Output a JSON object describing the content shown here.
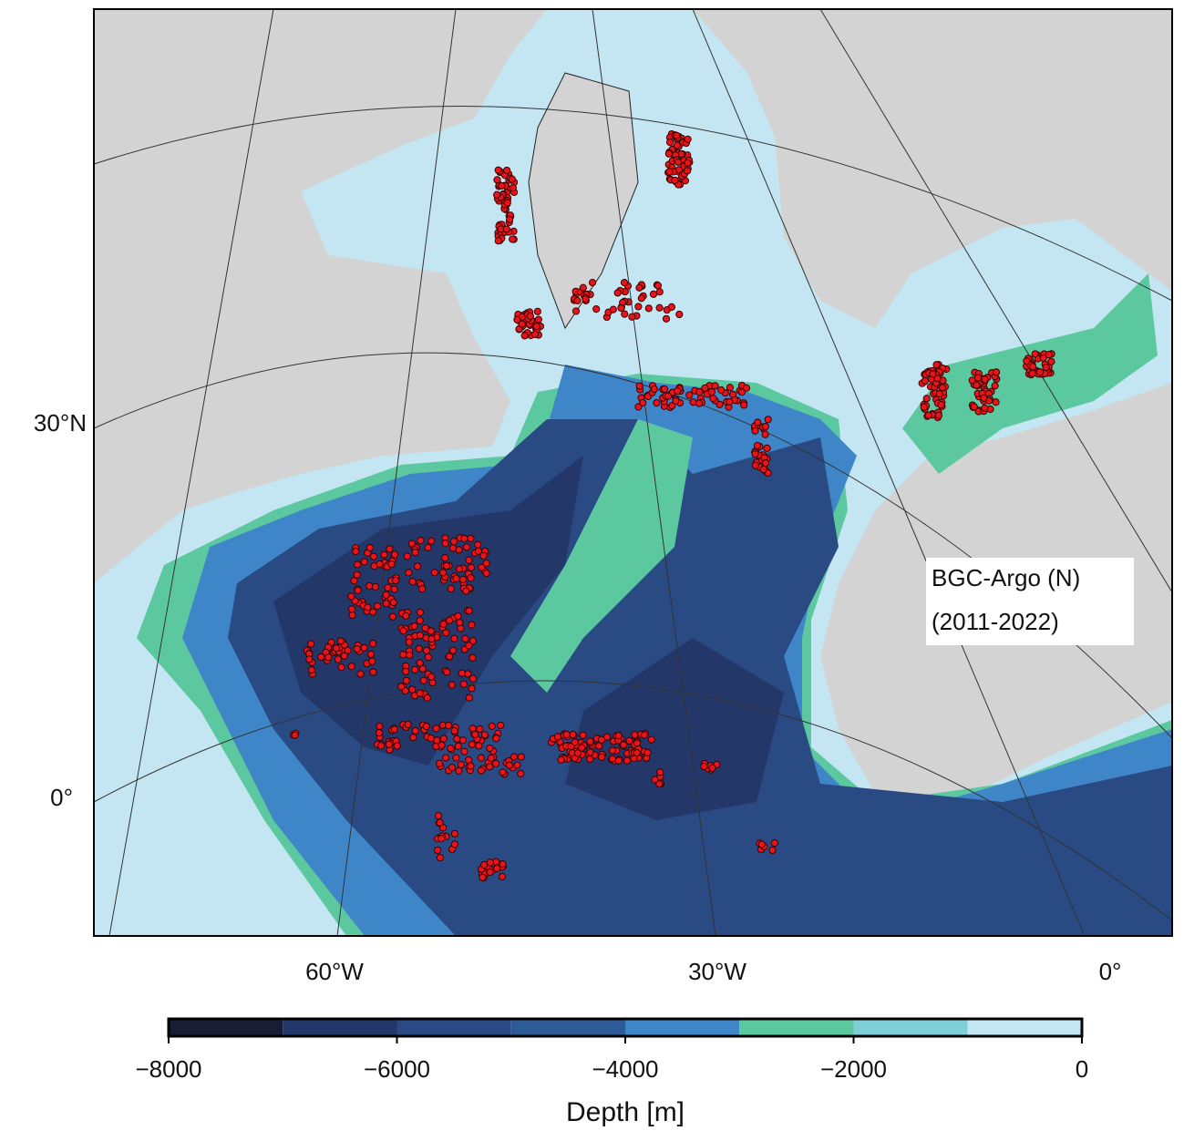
{
  "map": {
    "lat_labels": [
      "30°N",
      "0°"
    ],
    "lon_labels": [
      "60°W",
      "30°W",
      "0°"
    ],
    "legend": [
      "BGC-Argo (N)",
      "(2011-2022)"
    ]
  },
  "colorbar": {
    "label": "Depth [m]",
    "lim": [
      -8000,
      0
    ],
    "levels": [
      -8000,
      -7000,
      -6000,
      -5000,
      -4000,
      -3000,
      -2000,
      -1000,
      0
    ],
    "colors": [
      "#181c34",
      "#233768",
      "#2a4a84",
      "#2f5a98",
      "#3f86c8",
      "#5cc8a0",
      "#7fcfd9",
      "#c3e6f2"
    ],
    "ticks": [
      {
        "value": -8000,
        "label": "−8000"
      },
      {
        "value": -6000,
        "label": "−6000"
      },
      {
        "value": -4000,
        "label": "−4000"
      },
      {
        "value": -2000,
        "label": "−2000"
      },
      0
    ]
  }
}
